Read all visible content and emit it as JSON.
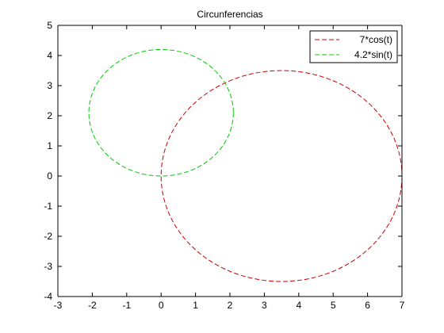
{
  "chart_data": {
    "type": "line",
    "title": "Circunferencias",
    "xlabel": "",
    "ylabel": "",
    "xlim": [
      -3,
      7
    ],
    "ylim": [
      -4,
      5
    ],
    "xticks": [
      -3,
      -2,
      -1,
      0,
      1,
      2,
      3,
      4,
      5,
      6,
      7
    ],
    "yticks": [
      -4,
      -3,
      -2,
      -1,
      0,
      1,
      2,
      3,
      4,
      5
    ],
    "grid": false,
    "legend_position": "top-right",
    "series": [
      {
        "name": "7*cos(t)",
        "color": "#cc0000",
        "line_style": "dashed",
        "shape": "circle",
        "center": [
          3.5,
          0
        ],
        "radius": 3.5
      },
      {
        "name": "4.2*sin(t)",
        "color": "#00cc00",
        "line_style": "dashed",
        "shape": "circle",
        "center": [
          0,
          2.1
        ],
        "radius": 2.1
      }
    ]
  }
}
